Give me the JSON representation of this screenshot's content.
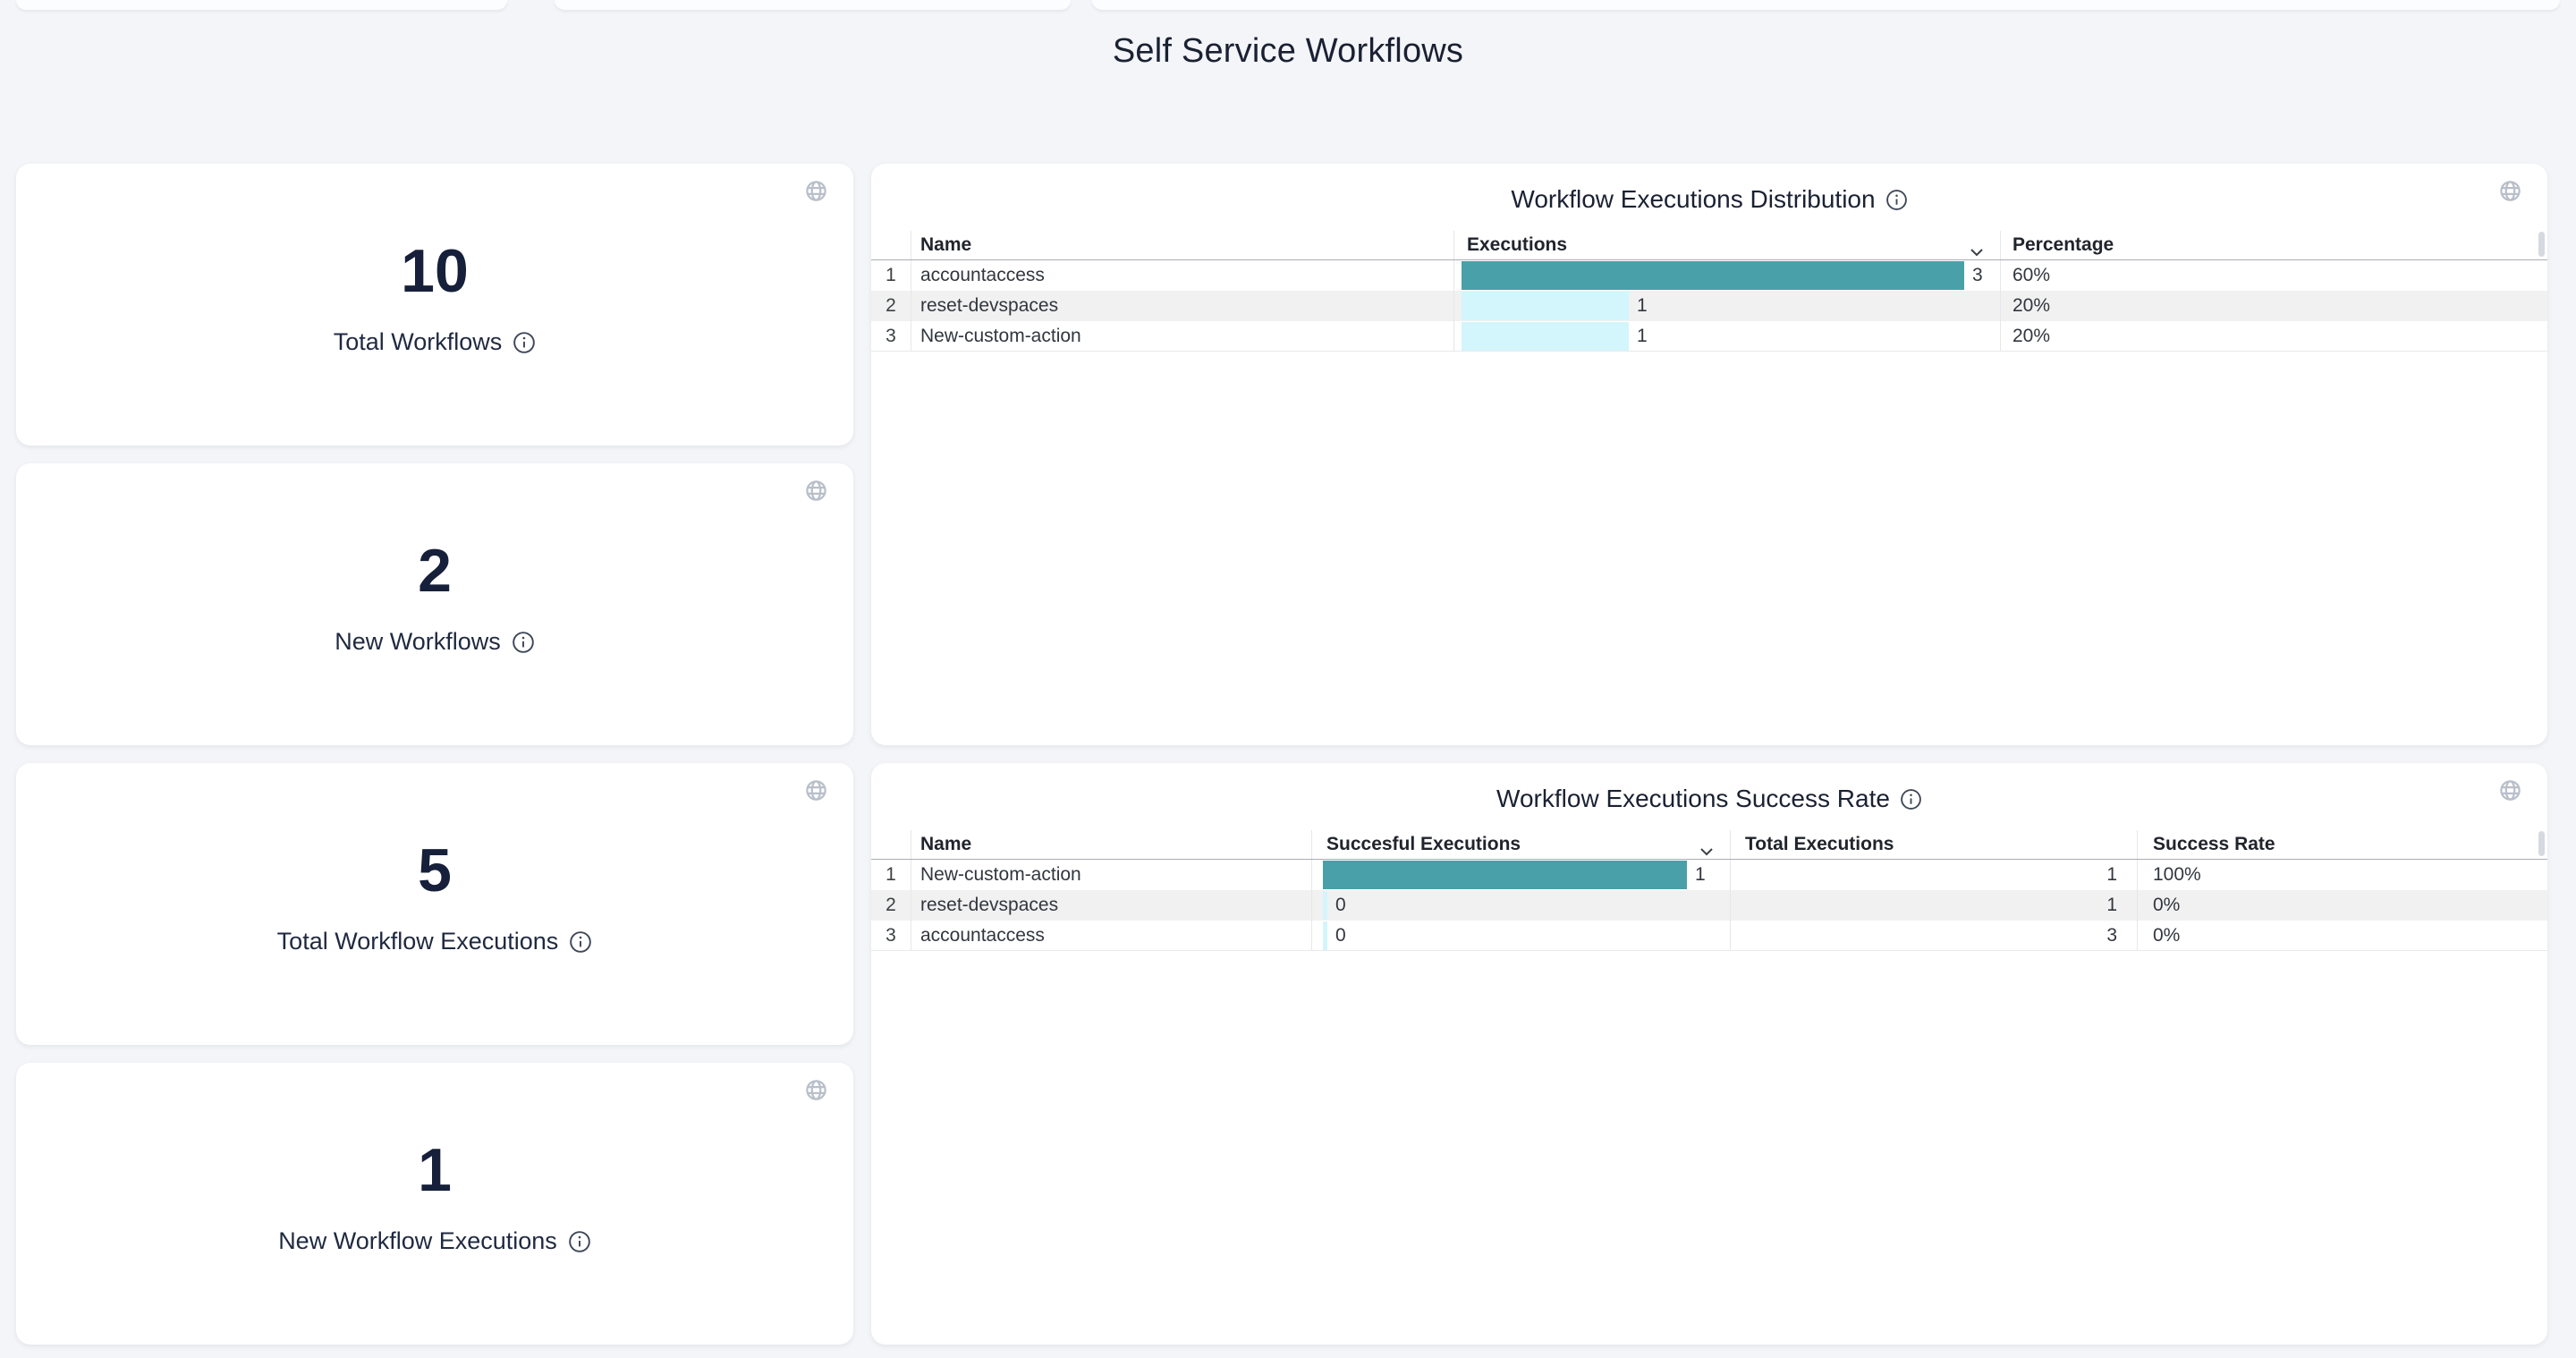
{
  "page": {
    "title": "Self Service Workflows"
  },
  "colors": {
    "bar_max": "#49A0A8",
    "bar_low": "#D2F6FB",
    "row_alt": "#f1f1f1"
  },
  "stat_cards": [
    {
      "value": "10",
      "label": "Total Workflows"
    },
    {
      "value": "2",
      "label": "New Workflows"
    },
    {
      "value": "5",
      "label": "Total Workflow Executions"
    },
    {
      "value": "1",
      "label": "New Workflow Executions"
    }
  ],
  "distribution_panel": {
    "title": "Workflow Executions Distribution",
    "columns": {
      "name": "Name",
      "executions": "Executions",
      "percentage": "Percentage"
    },
    "sorted_by": "Executions",
    "sort_direction": "desc",
    "rows": [
      {
        "index": "1",
        "name": "accountaccess",
        "executions": 3,
        "percentage": "60%"
      },
      {
        "index": "2",
        "name": "reset-devspaces",
        "executions": 1,
        "percentage": "20%"
      },
      {
        "index": "3",
        "name": "New-custom-action",
        "executions": 1,
        "percentage": "20%"
      }
    ]
  },
  "success_panel": {
    "title": "Workflow Executions Success Rate",
    "columns": {
      "name": "Name",
      "successful": "Succesful Executions",
      "total": "Total Executions",
      "rate": "Success Rate"
    },
    "sorted_by": "Succesful Executions",
    "sort_direction": "desc",
    "rows": [
      {
        "index": "1",
        "name": "New-custom-action",
        "successful": 1,
        "total": "1",
        "rate": "100%"
      },
      {
        "index": "2",
        "name": "reset-devspaces",
        "successful": 0,
        "total": "1",
        "rate": "0%"
      },
      {
        "index": "3",
        "name": "accountaccess",
        "successful": 0,
        "total": "3",
        "rate": "0%"
      }
    ]
  }
}
